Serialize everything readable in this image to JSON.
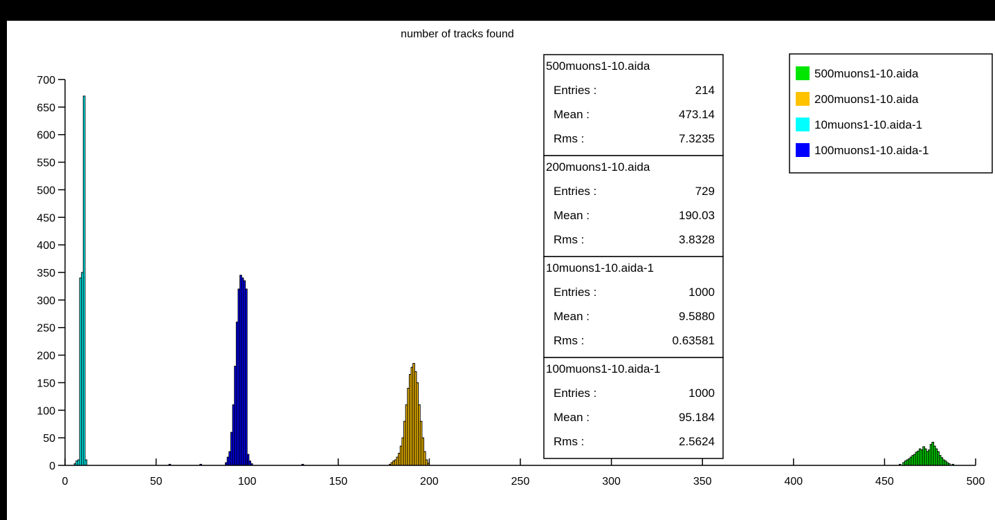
{
  "chart_data": {
    "type": "histogram",
    "title": "number of tracks found",
    "xlabel": "",
    "ylabel": "",
    "xlim": [
      0,
      500
    ],
    "ylim": [
      0,
      700
    ],
    "x_ticks": [
      0,
      50,
      100,
      150,
      200,
      250,
      300,
      350,
      400,
      450,
      500
    ],
    "y_ticks": [
      0,
      50,
      100,
      150,
      200,
      250,
      300,
      350,
      400,
      450,
      500,
      550,
      600,
      650,
      700
    ],
    "grid": false,
    "legend_position": "top-right",
    "series": [
      {
        "name": "500muons1-10.aida",
        "color": "#00e600",
        "entries": "214",
        "mean": "473.14",
        "rms": "7.3235",
        "bins": [
          [
            458,
            2
          ],
          [
            460,
            5
          ],
          [
            461,
            8
          ],
          [
            462,
            10
          ],
          [
            463,
            12
          ],
          [
            464,
            15
          ],
          [
            465,
            18
          ],
          [
            466,
            20
          ],
          [
            467,
            24
          ],
          [
            468,
            26
          ],
          [
            469,
            30
          ],
          [
            470,
            28
          ],
          [
            471,
            34
          ],
          [
            472,
            30
          ],
          [
            473,
            25
          ],
          [
            474,
            28
          ],
          [
            475,
            38
          ],
          [
            476,
            42
          ],
          [
            477,
            35
          ],
          [
            478,
            30
          ],
          [
            479,
            25
          ],
          [
            480,
            18
          ],
          [
            481,
            14
          ],
          [
            482,
            10
          ],
          [
            483,
            8
          ],
          [
            484,
            5
          ],
          [
            485,
            3
          ],
          [
            487,
            2
          ]
        ]
      },
      {
        "name": "200muons1-10.aida",
        "color": "#ffc200",
        "entries": "729",
        "mean": "190.03",
        "rms": "3.8328",
        "bins": [
          [
            178,
            2
          ],
          [
            179,
            5
          ],
          [
            180,
            8
          ],
          [
            181,
            10
          ],
          [
            182,
            15
          ],
          [
            183,
            22
          ],
          [
            184,
            35
          ],
          [
            185,
            50
          ],
          [
            186,
            80
          ],
          [
            187,
            110
          ],
          [
            188,
            140
          ],
          [
            189,
            165
          ],
          [
            190,
            178
          ],
          [
            191,
            185
          ],
          [
            192,
            170
          ],
          [
            193,
            150
          ],
          [
            194,
            110
          ],
          [
            195,
            80
          ],
          [
            196,
            50
          ],
          [
            197,
            25
          ],
          [
            198,
            10
          ],
          [
            199,
            4
          ]
        ]
      },
      {
        "name": "10muons1-10.aida-1",
        "color": "#00ffff",
        "entries": "1000",
        "mean": "9.5880",
        "rms": "0.63581",
        "bins": [
          [
            5,
            3
          ],
          [
            6,
            8
          ],
          [
            7,
            10
          ],
          [
            8,
            340
          ],
          [
            9,
            350
          ],
          [
            10,
            670
          ],
          [
            11,
            10
          ]
        ]
      },
      {
        "name": "100muons1-10.aida-1",
        "color": "#0000ff",
        "entries": "1000",
        "mean": "95.184",
        "rms": "2.5624",
        "bins": [
          [
            57,
            2
          ],
          [
            74,
            2
          ],
          [
            88,
            5
          ],
          [
            89,
            15
          ],
          [
            90,
            25
          ],
          [
            91,
            60
          ],
          [
            92,
            110
          ],
          [
            93,
            180
          ],
          [
            94,
            260
          ],
          [
            95,
            320
          ],
          [
            96,
            345
          ],
          [
            97,
            340
          ],
          [
            98,
            335
          ],
          [
            99,
            320
          ],
          [
            100,
            20
          ],
          [
            101,
            8
          ],
          [
            102,
            3
          ],
          [
            130,
            2
          ]
        ]
      }
    ]
  },
  "stats_panel": {
    "entries_label": "Entries :",
    "mean_label": "Mean :",
    "rms_label": "Rms :"
  }
}
